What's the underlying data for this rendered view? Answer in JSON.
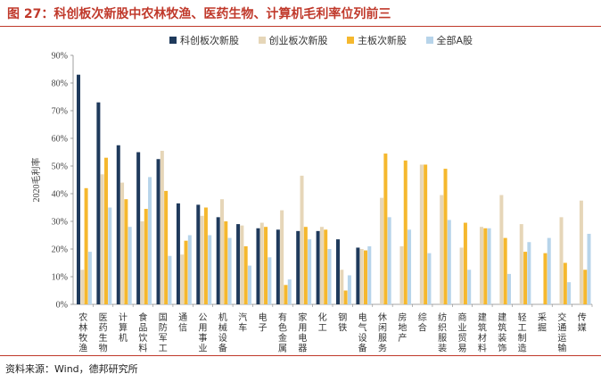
{
  "title": "图 27：科创板次新股中农林牧渔、医药生物、计算机毛利率位列前三",
  "source": "资料来源：Wind，德邦研究所",
  "colors": {
    "accent": "#c0392b",
    "series": [
      "#1f3a5c",
      "#e6d6b8",
      "#f5b82e",
      "#b7d4ea"
    ]
  },
  "chart_data": {
    "type": "bar",
    "ylabel": "2020毛利率",
    "ylim": [
      0,
      90
    ],
    "yticks": [
      "0%",
      "10%",
      "20%",
      "30%",
      "40%",
      "50%",
      "60%",
      "70%",
      "80%",
      "90%"
    ],
    "grid": false,
    "legend_position": "top",
    "categories": [
      "农林牧渔",
      "医药生物",
      "计算机",
      "食品饮料",
      "国防军工",
      "通信",
      "公用事业",
      "机械设备",
      "汽车",
      "电子",
      "有色金属",
      "家用电器",
      "化工",
      "钢铁",
      "电气设备",
      "休闲服务",
      "房地产",
      "综合",
      "纺织服装",
      "商业贸易",
      "建筑材料",
      "建筑装饰",
      "轻工制造",
      "采掘",
      "交通运输",
      "传媒"
    ],
    "series": [
      {
        "name": "科创板次新股",
        "values": [
          83,
          73,
          57.5,
          55,
          52.5,
          36.5,
          36,
          31.5,
          29,
          27.5,
          27,
          26.5,
          26.5,
          23.5,
          20.5,
          null,
          null,
          null,
          null,
          null,
          null,
          null,
          null,
          null,
          null,
          null
        ]
      },
      {
        "name": "创业板次新股",
        "values": [
          12.5,
          47,
          44,
          30,
          55.5,
          18,
          32,
          38,
          28.5,
          29.5,
          34,
          46.5,
          28,
          12.5,
          20,
          38.5,
          21,
          50.5,
          39.5,
          20.5,
          28,
          39.5,
          29,
          0,
          31.5,
          37.5
        ]
      },
      {
        "name": "主板次新股",
        "values": [
          42,
          53,
          38,
          34.5,
          41,
          23,
          35,
          30,
          21,
          28,
          7,
          28,
          27,
          5,
          19.5,
          54.5,
          52,
          50.5,
          49,
          29.5,
          27.5,
          24,
          19,
          18.5,
          15,
          12.5
        ]
      },
      {
        "name": "全部A股",
        "values": [
          19,
          35,
          28,
          46,
          17.5,
          25,
          25,
          24,
          14,
          17,
          9,
          23.5,
          20,
          10.5,
          21,
          31.5,
          27,
          18.5,
          30.5,
          12.5,
          27.5,
          11,
          22.5,
          24,
          8,
          25.5
        ]
      }
    ]
  }
}
